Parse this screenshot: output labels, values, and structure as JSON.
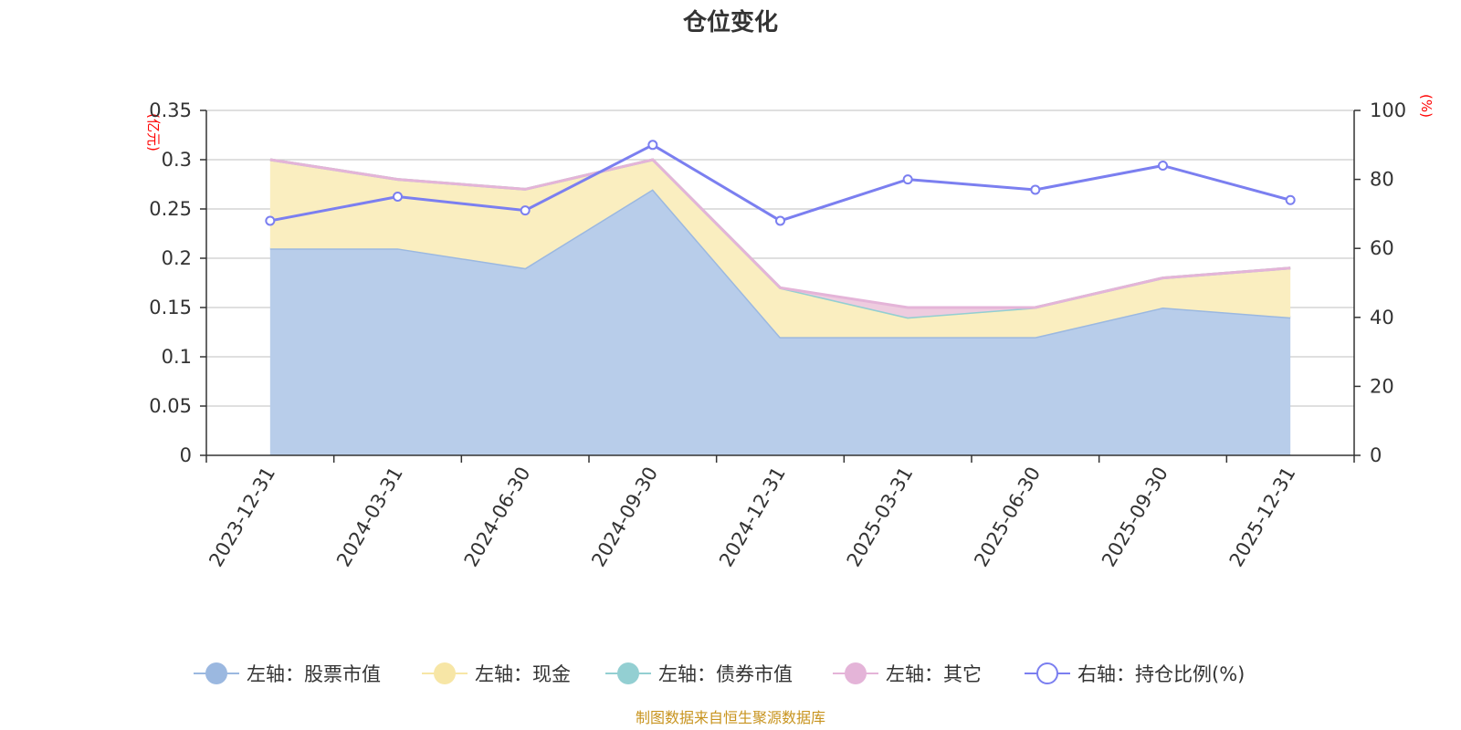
{
  "chart_data": {
    "type": "area",
    "title": "仓位变化",
    "left_unit": "(亿元)",
    "right_unit": "(%)",
    "categories": [
      "2023-12-31",
      "2024-03-31",
      "2024-06-30",
      "2024-09-30",
      "2024-12-31",
      "2025-03-31",
      "2025-06-30",
      "2025-09-30",
      "2025-12-31"
    ],
    "left_axis": {
      "min": 0,
      "max": 0.35,
      "ticks": [
        "0",
        "0.05",
        "0.1",
        "0.15",
        "0.2",
        "0.25",
        "0.3",
        "0.35"
      ]
    },
    "right_axis": {
      "min": 0,
      "max": 100,
      "ticks": [
        "0",
        "20",
        "40",
        "60",
        "80",
        "100"
      ]
    },
    "series": [
      {
        "name": "左轴：股票市值",
        "axis": "left",
        "stack": true,
        "color": "#9bb8e0",
        "fill": "#b8cdea",
        "values": [
          0.21,
          0.21,
          0.19,
          0.27,
          0.12,
          0.12,
          0.12,
          0.15,
          0.14
        ]
      },
      {
        "name": "左轴：现金",
        "axis": "left",
        "stack": true,
        "color": "#f7e6a6",
        "fill": "#faeec0",
        "values": [
          0.09,
          0.07,
          0.08,
          0.03,
          0.05,
          0.02,
          0.03,
          0.03,
          0.05
        ]
      },
      {
        "name": "左轴：债券市值",
        "axis": "left",
        "stack": true,
        "color": "#93cfd2",
        "fill": "#b3dfe1",
        "values": [
          0,
          0,
          0,
          0,
          0,
          0,
          0,
          0,
          0
        ]
      },
      {
        "name": "左轴：其它",
        "axis": "left",
        "stack": true,
        "color": "#e4b4d8",
        "fill": "#eeccdf",
        "values": [
          0,
          0,
          0,
          0,
          0,
          0.01,
          0,
          0,
          0
        ]
      },
      {
        "name": "右轴：持仓比例(%)",
        "axis": "right",
        "stack": false,
        "color": "#7b7ff0",
        "values": [
          68,
          75,
          71,
          90,
          68,
          80,
          77,
          84,
          74
        ]
      }
    ],
    "source": "制图数据来自恒生聚源数据库"
  }
}
